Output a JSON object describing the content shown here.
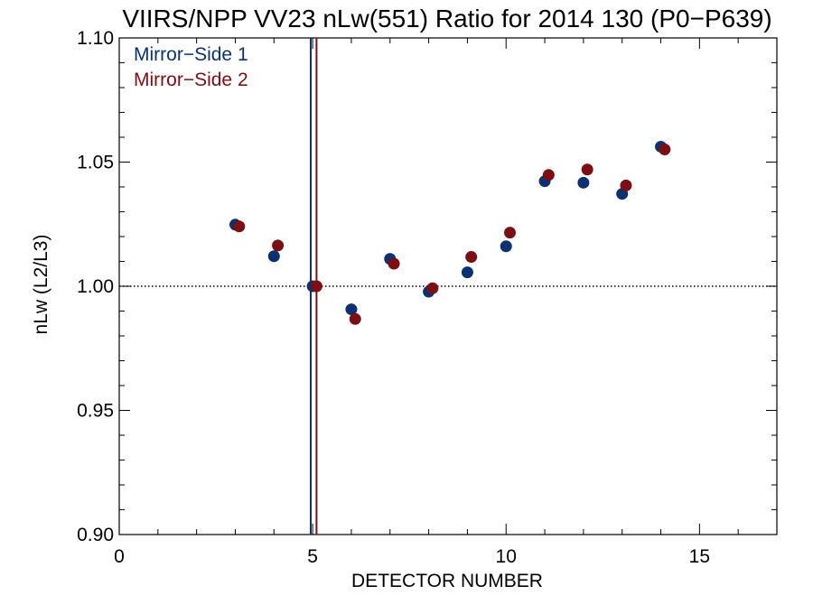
{
  "chart_data": {
    "type": "scatter",
    "title": "VIIRS/NPP VV23 nLw(551) Ratio for 2014 130 (P0−P639)",
    "xlabel": "DETECTOR NUMBER",
    "ylabel": "nLw (L2/L3)",
    "xlim": [
      0,
      17
    ],
    "ylim": [
      0.9,
      1.1
    ],
    "x_ticks": [
      "0",
      "5",
      "10",
      "15"
    ],
    "y_ticks": [
      "0.90",
      "0.95",
      "1.00",
      "1.05",
      "1.10"
    ],
    "reference_line": {
      "y": 1.0,
      "style": "dotted"
    },
    "vertical_lines": [
      {
        "x": 4.95,
        "series": "Mirror−Side 1"
      },
      {
        "x": 5.1,
        "series": "Mirror−Side 2"
      }
    ],
    "legend_position": "top-left",
    "grid": false,
    "series": [
      {
        "name": "Mirror−Side 1",
        "color": "#0b3170",
        "points": [
          {
            "x": 3.0,
            "y": 1.0248
          },
          {
            "x": 4.0,
            "y": 1.0121
          },
          {
            "x": 5.0,
            "y": 1.0
          },
          {
            "x": 6.0,
            "y": 0.9907
          },
          {
            "x": 7.0,
            "y": 1.011
          },
          {
            "x": 8.0,
            "y": 0.9978
          },
          {
            "x": 9.0,
            "y": 1.0056
          },
          {
            "x": 10.0,
            "y": 1.0161
          },
          {
            "x": 11.0,
            "y": 1.0423
          },
          {
            "x": 12.0,
            "y": 1.0417
          },
          {
            "x": 13.0,
            "y": 1.0372
          },
          {
            "x": 14.0,
            "y": 1.0562
          }
        ]
      },
      {
        "name": "Mirror−Side 2",
        "color": "#7a0f14",
        "points": [
          {
            "x": 3.1,
            "y": 1.0241
          },
          {
            "x": 4.1,
            "y": 1.0164
          },
          {
            "x": 5.1,
            "y": 1.0
          },
          {
            "x": 6.1,
            "y": 0.9868
          },
          {
            "x": 7.1,
            "y": 1.0091
          },
          {
            "x": 8.1,
            "y": 0.9992
          },
          {
            "x": 9.1,
            "y": 1.0118
          },
          {
            "x": 10.1,
            "y": 1.0216
          },
          {
            "x": 11.1,
            "y": 1.0448
          },
          {
            "x": 12.1,
            "y": 1.047
          },
          {
            "x": 13.1,
            "y": 1.0406
          },
          {
            "x": 14.1,
            "y": 1.0551
          }
        ]
      }
    ]
  }
}
